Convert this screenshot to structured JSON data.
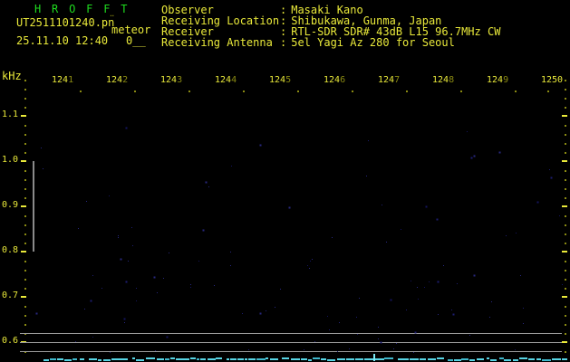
{
  "app": {
    "title": "H R O F F T"
  },
  "header": {
    "filename": "UT2511101240.pn",
    "filename_artifact": "¨",
    "mode_label": "meteor",
    "datetime": "25.11.10 12:40",
    "counter": "0__",
    "info_rows": [
      {
        "label": "Observer",
        "sep": ":",
        "value": "Masaki Kano"
      },
      {
        "label": "Receiving Location",
        "sep": ":",
        "value": "Shibukawa, Gunma, Japan"
      },
      {
        "label": "Receiver",
        "sep": ":",
        "value": "RTL-SDR SDR# 43dB L15 96.7MHz CW"
      },
      {
        "label": "Receiving Antenna",
        "sep": ":",
        "value": "5el Yagi Az 280 for Seoul"
      }
    ]
  },
  "colors": {
    "background": "#000000",
    "title_green": "#1fdb1f",
    "text_yellow": "#e9e93a",
    "dim_yellow": "#8a8a12",
    "reference_gray": "#9b9b9b",
    "calibration_gray": "#8a8a8a",
    "noise_speckle_blue": "#1d1d70",
    "level_trace_cyan": "#57d4e4",
    "spike_cyan": "#7ceaf5"
  },
  "chart_data": {
    "type": "heatmap",
    "description": "HROFFT 10-minute meteor-echo spectrogram just after start of recording: spectrogram area is empty (only faint background-noise speckles), signal-level trace along the bottom is flat at minimum with one tiny spike near 12:46.4",
    "x_axis": {
      "tick_labels": [
        "1241",
        "1242",
        "1243",
        "1244",
        "1245",
        "1246",
        "1247",
        "1248",
        "1249",
        "1250"
      ],
      "dim_last_digit_except_final": true,
      "minutes_per_division": 1
    },
    "y_axis": {
      "unit_label": "kHz",
      "tick_labels": [
        "1.1",
        "1.0",
        "0.9",
        "0.8",
        "0.7",
        "0.6"
      ],
      "range_khz": [
        1.18,
        0.56
      ],
      "minor_tick_step_khz": 0.02
    },
    "reference_lines_khz": [
      0.62,
      0.6,
      0.58
    ],
    "calibration_bar_khz": [
      1.0,
      0.8
    ],
    "echoes": [],
    "signal_level_trace": {
      "baseline": "flat at minimum",
      "spikes": [
        {
          "time_min": 1246.4,
          "relative_height": "small"
        }
      ]
    }
  }
}
